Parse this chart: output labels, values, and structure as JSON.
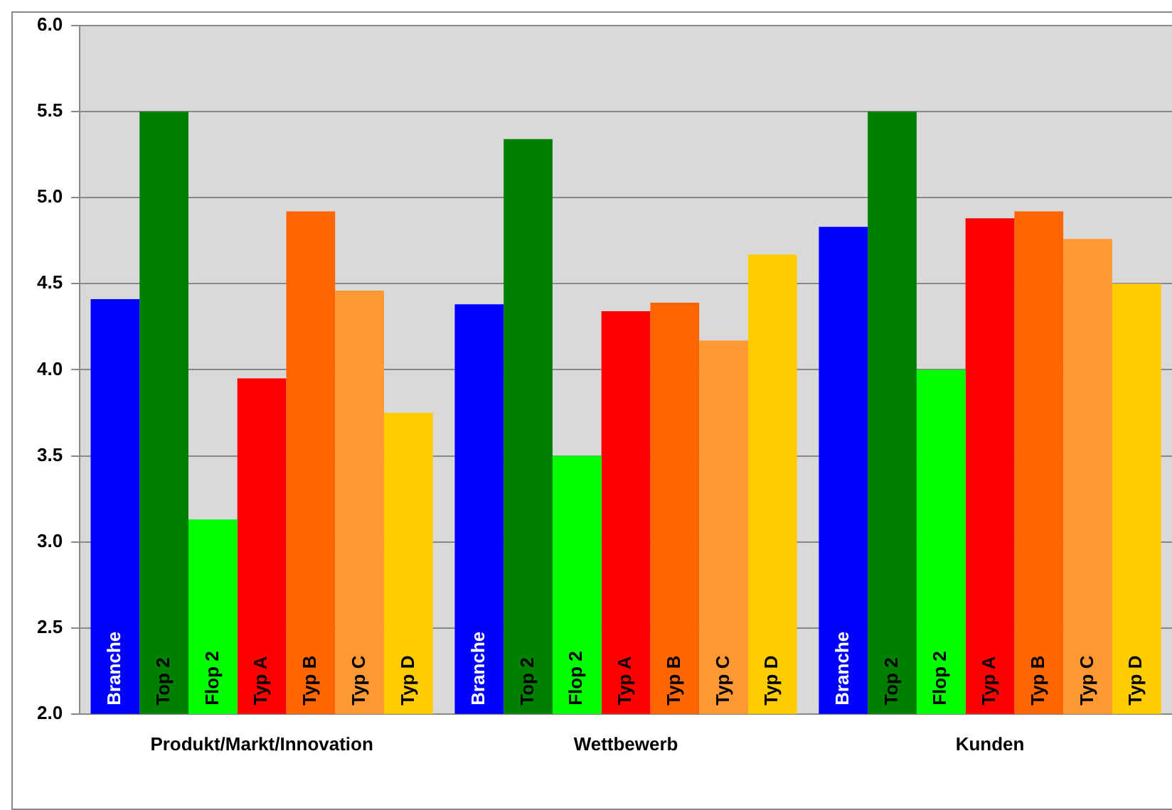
{
  "chart_data": {
    "type": "bar",
    "categories": [
      "Produkt/Markt/Innovation",
      "Wettbewerb",
      "Kunden"
    ],
    "series": [
      {
        "name": "Branche",
        "color": "#0000ff",
        "values": [
          4.41,
          4.38,
          4.83
        ]
      },
      {
        "name": "Top 2",
        "color": "#008000",
        "values": [
          5.5,
          5.34,
          5.5
        ]
      },
      {
        "name": "Flop 2",
        "color": "#00ff00",
        "values": [
          3.13,
          3.5,
          4.0
        ]
      },
      {
        "name": "Typ A",
        "color": "#ff0000",
        "values": [
          3.95,
          4.34,
          4.88
        ]
      },
      {
        "name": "Typ B",
        "color": "#ff6600",
        "values": [
          4.92,
          4.39,
          4.92
        ]
      },
      {
        "name": "Typ C",
        "color": "#ff9933",
        "values": [
          4.46,
          4.17,
          4.76
        ]
      },
      {
        "name": "Typ D",
        "color": "#ffcc00",
        "values": [
          3.75,
          4.67,
          4.5
        ]
      }
    ],
    "ylim": [
      2,
      6
    ],
    "yticks": [
      {
        "value": 2,
        "label": "2.0"
      },
      {
        "value": 2.5,
        "label": "2.5"
      },
      {
        "value": 3,
        "label": "3.0"
      },
      {
        "value": 3.5,
        "label": "3.5"
      },
      {
        "value": 4,
        "label": "4.0"
      },
      {
        "value": 4.5,
        "label": "4.5"
      },
      {
        "value": 5,
        "label": "5.0"
      },
      {
        "value": 5.5,
        "label": "5.5"
      },
      {
        "value": 6,
        "label": "6.0"
      }
    ],
    "grid": "y",
    "legend": false
  }
}
